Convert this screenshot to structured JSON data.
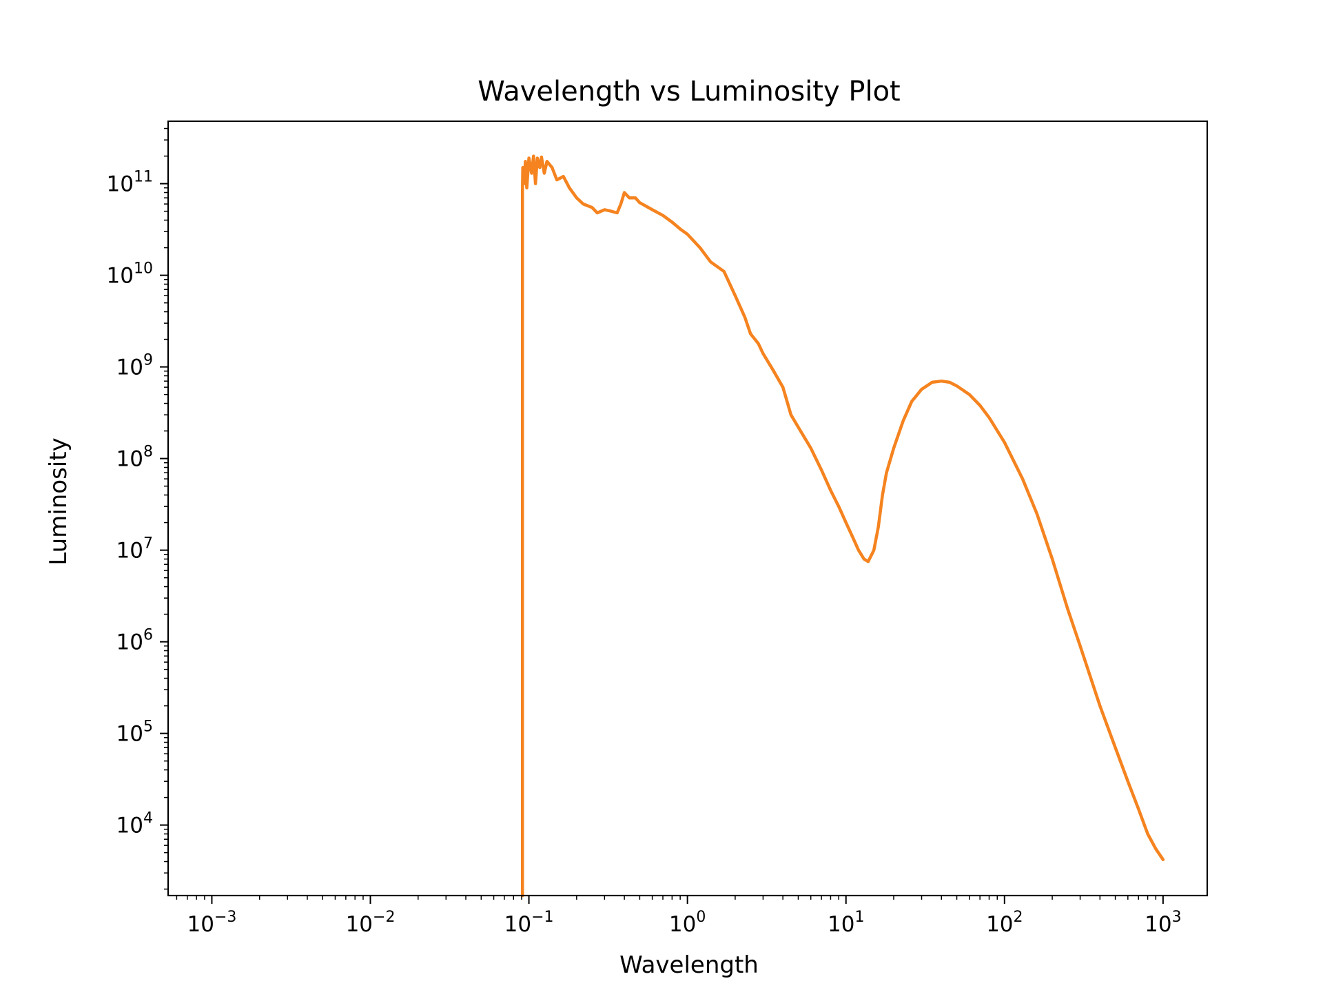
{
  "chart_data": {
    "type": "line",
    "title": "Wavelength vs Luminosity Plot",
    "xlabel": "Wavelength",
    "ylabel": "Luminosity",
    "x_scale": "log",
    "y_scale": "log",
    "xlim": [
      0.00053,
      1900
    ],
    "ylim": [
      1700,
      480000000000
    ],
    "grid": false,
    "legend": "none",
    "x_ticks": [
      {
        "value": 0.001,
        "base": "10",
        "exp": "−3"
      },
      {
        "value": 0.01,
        "base": "10",
        "exp": "−2"
      },
      {
        "value": 0.1,
        "base": "10",
        "exp": "−1"
      },
      {
        "value": 1,
        "base": "10",
        "exp": "0"
      },
      {
        "value": 10,
        "base": "10",
        "exp": "1"
      },
      {
        "value": 100,
        "base": "10",
        "exp": "2"
      },
      {
        "value": 1000,
        "base": "10",
        "exp": "3"
      }
    ],
    "y_ticks": [
      {
        "value": 10000,
        "base": "10",
        "exp": "4"
      },
      {
        "value": 100000,
        "base": "10",
        "exp": "5"
      },
      {
        "value": 1000000,
        "base": "10",
        "exp": "6"
      },
      {
        "value": 10000000,
        "base": "10",
        "exp": "7"
      },
      {
        "value": 100000000,
        "base": "10",
        "exp": "8"
      },
      {
        "value": 1000000000,
        "base": "10",
        "exp": "9"
      },
      {
        "value": 10000000000,
        "base": "10",
        "exp": "10"
      },
      {
        "value": 100000000000,
        "base": "10",
        "exp": "11"
      }
    ],
    "series": [
      {
        "color": "#f5831f",
        "points": [
          [
            0.091,
            1700
          ],
          [
            0.091,
            80000000000
          ],
          [
            0.0915,
            150000000000
          ],
          [
            0.093,
            100000000000
          ],
          [
            0.095,
            175000000000
          ],
          [
            0.097,
            90000000000
          ],
          [
            0.1,
            190000000000
          ],
          [
            0.104,
            130000000000
          ],
          [
            0.107,
            200000000000
          ],
          [
            0.11,
            100000000000
          ],
          [
            0.113,
            190000000000
          ],
          [
            0.117,
            150000000000
          ],
          [
            0.12,
            195000000000
          ],
          [
            0.125,
            130000000000
          ],
          [
            0.13,
            175000000000
          ],
          [
            0.14,
            150000000000
          ],
          [
            0.15,
            110000000000
          ],
          [
            0.165,
            120000000000
          ],
          [
            0.18,
            90000000000
          ],
          [
            0.2,
            70000000000
          ],
          [
            0.22,
            60000000000
          ],
          [
            0.25,
            55000000000
          ],
          [
            0.27,
            48000000000
          ],
          [
            0.3,
            52000000000
          ],
          [
            0.33,
            50000000000
          ],
          [
            0.36,
            48000000000
          ],
          [
            0.38,
            60000000000
          ],
          [
            0.4,
            80000000000
          ],
          [
            0.43,
            70000000000
          ],
          [
            0.47,
            70000000000
          ],
          [
            0.5,
            62000000000
          ],
          [
            0.6,
            52000000000
          ],
          [
            0.7,
            45000000000
          ],
          [
            0.8,
            38000000000
          ],
          [
            0.9,
            32000000000
          ],
          [
            1.0,
            28000000000
          ],
          [
            1.2,
            20000000000
          ],
          [
            1.4,
            14000000000
          ],
          [
            1.7,
            11000000000
          ],
          [
            2.0,
            6000000000
          ],
          [
            2.3,
            3500000000
          ],
          [
            2.5,
            2300000000
          ],
          [
            2.8,
            1800000000
          ],
          [
            3.0,
            1400000000
          ],
          [
            3.5,
            900000000
          ],
          [
            4.0,
            600000000
          ],
          [
            4.5,
            300000000
          ],
          [
            5.0,
            220000000
          ],
          [
            6.0,
            130000000
          ],
          [
            7.0,
            75000000
          ],
          [
            8.0,
            45000000
          ],
          [
            9.0,
            30000000
          ],
          [
            10.0,
            20000000
          ],
          [
            11.0,
            14000000
          ],
          [
            12.0,
            10000000
          ],
          [
            13.0,
            8000000
          ],
          [
            13.8,
            7500000
          ],
          [
            15.0,
            10000000
          ],
          [
            16.0,
            18000000
          ],
          [
            17.0,
            40000000
          ],
          [
            18.0,
            70000000
          ],
          [
            20.0,
            130000000
          ],
          [
            23.0,
            260000000
          ],
          [
            26.0,
            420000000
          ],
          [
            30.0,
            570000000
          ],
          [
            35.0,
            680000000
          ],
          [
            40.0,
            700000000
          ],
          [
            45.0,
            680000000
          ],
          [
            50.0,
            620000000
          ],
          [
            60.0,
            500000000
          ],
          [
            70.0,
            380000000
          ],
          [
            80.0,
            280000000
          ],
          [
            100.0,
            150000000
          ],
          [
            130.0,
            60000000
          ],
          [
            160.0,
            25000000
          ],
          [
            200.0,
            8000000
          ],
          [
            250.0,
            2300000
          ],
          [
            300.0,
            900000
          ],
          [
            400.0,
            200000
          ],
          [
            500.0,
            70000
          ],
          [
            600.0,
            30000
          ],
          [
            700.0,
            15000
          ],
          [
            800.0,
            8000
          ],
          [
            900.0,
            5500
          ],
          [
            1000.0,
            4200
          ]
        ]
      }
    ]
  }
}
